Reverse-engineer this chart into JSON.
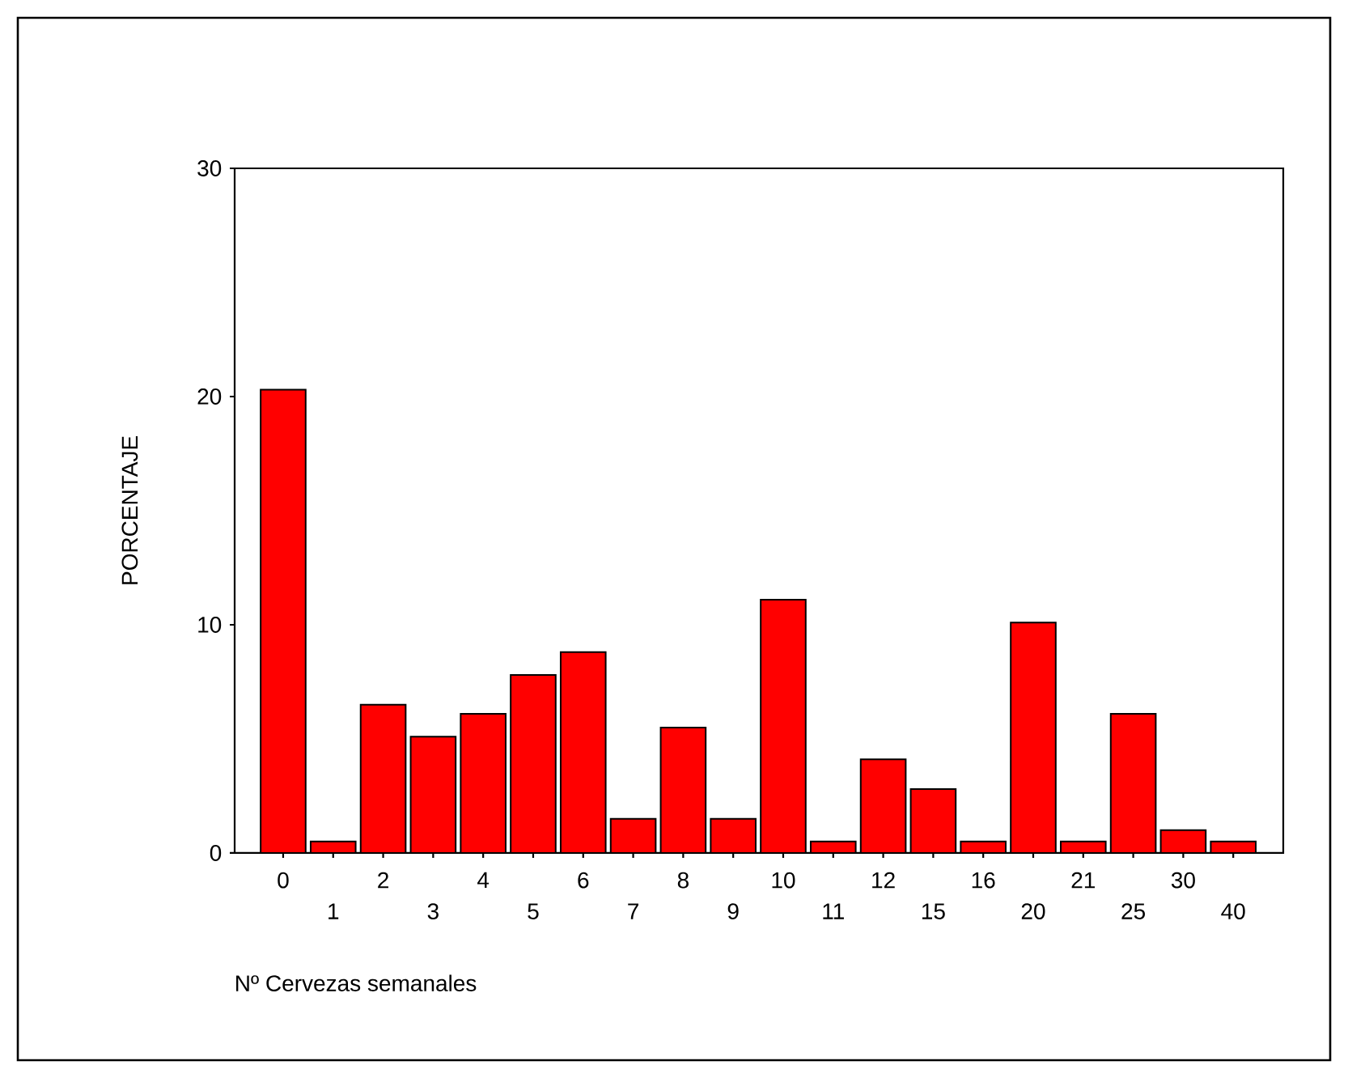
{
  "chart_data": {
    "type": "bar",
    "xlabel": "Nº Cervezas semanales",
    "ylabel": "PORCENTAJE",
    "categories": [
      "0",
      "1",
      "2",
      "3",
      "4",
      "5",
      "6",
      "7",
      "8",
      "9",
      "10",
      "11",
      "12",
      "15",
      "16",
      "20",
      "21",
      "25",
      "30",
      "40"
    ],
    "values": [
      20.3,
      0.5,
      6.5,
      5.1,
      6.1,
      7.8,
      8.8,
      1.5,
      5.5,
      1.5,
      11.1,
      0.5,
      4.1,
      2.8,
      0.5,
      10.1,
      0.5,
      6.1,
      1.0,
      0.5
    ],
    "color": "#ff0000",
    "ylim": [
      0,
      30
    ],
    "yticks": [
      0,
      10,
      20,
      30
    ],
    "grid": false
  }
}
